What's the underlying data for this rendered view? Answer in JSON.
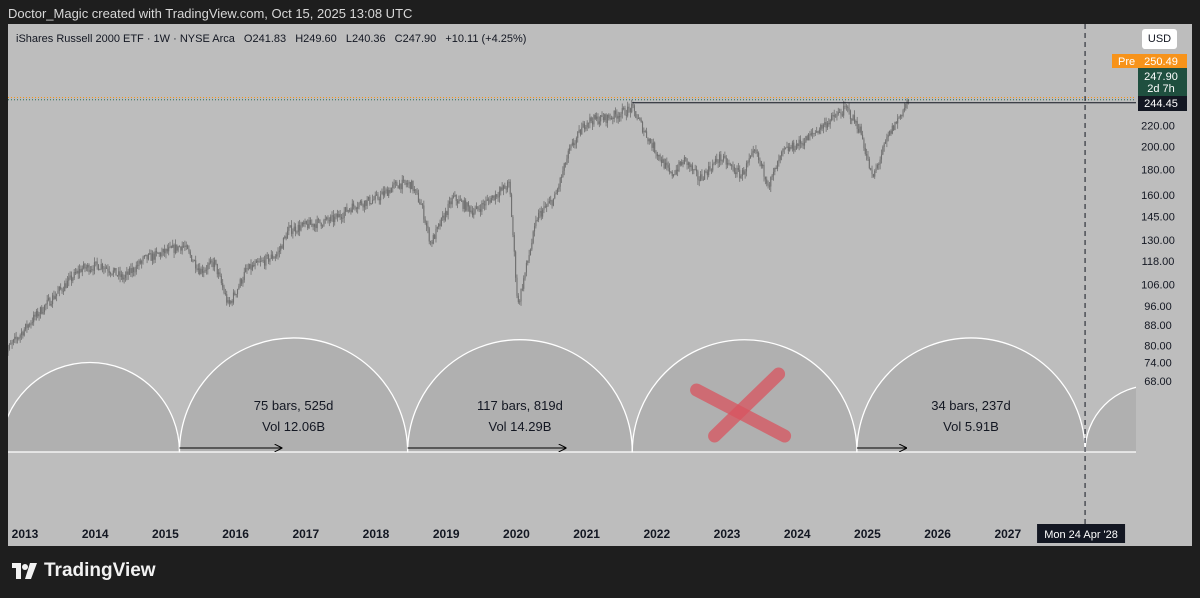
{
  "header": {
    "attribution": "Doctor_Magic created with TradingView.com, Oct 15, 2025 13:08 UTC"
  },
  "legend": {
    "symbol": "iShares Russell 2000 ETF · 1W · NYSE Arca",
    "open": "O241.83",
    "high": "H249.60",
    "low": "L240.36",
    "close": "C247.90",
    "change": "+10.11 (+4.25%)"
  },
  "currency_button": "USD",
  "price_badges": {
    "pre_label": "Pre",
    "pre_value": "250.49",
    "last_value": "247.90",
    "countdown": "2d 7h",
    "level_value": "244.45"
  },
  "crosshair_date": "Mon 24 Apr '28",
  "brand": {
    "name": "TradingView"
  },
  "colors": {
    "background": "#bdbdbd",
    "candles": "#6f6f6f",
    "pre_badge": "#f7931a",
    "last_badge": "#1f4f3f",
    "arc": "#ffffff",
    "cross": "#d9545f"
  },
  "chart_data": {
    "type": "candlestick",
    "timeframe": "1W",
    "y_scale": "log",
    "y_ticks": [
      220.0,
      200.0,
      180.0,
      160.0,
      145.0,
      130.0,
      118.0,
      106.0,
      96.0,
      88.0,
      80.0,
      74.0,
      68.0
    ],
    "x_ticks": [
      "2013",
      "2014",
      "2015",
      "2016",
      "2017",
      "2018",
      "2019",
      "2020",
      "2021",
      "2022",
      "2023",
      "2024",
      "2025",
      "2026",
      "2027"
    ],
    "price_path": [
      [
        2012.9,
        77
      ],
      [
        2013.3,
        90
      ],
      [
        2013.6,
        100
      ],
      [
        2014.0,
        114
      ],
      [
        2014.3,
        116
      ],
      [
        2014.6,
        109
      ],
      [
        2014.9,
        119
      ],
      [
        2015.2,
        123
      ],
      [
        2015.45,
        127
      ],
      [
        2015.7,
        113
      ],
      [
        2015.9,
        117
      ],
      [
        2016.1,
        96
      ],
      [
        2016.35,
        113
      ],
      [
        2016.8,
        122
      ],
      [
        2016.95,
        136
      ],
      [
        2017.2,
        139
      ],
      [
        2017.6,
        143
      ],
      [
        2017.9,
        153
      ],
      [
        2018.2,
        157
      ],
      [
        2018.5,
        168
      ],
      [
        2018.7,
        168
      ],
      [
        2018.85,
        152
      ],
      [
        2018.98,
        128
      ],
      [
        2019.3,
        158
      ],
      [
        2019.6,
        148
      ],
      [
        2019.9,
        160
      ],
      [
        2020.1,
        168
      ],
      [
        2020.22,
        96
      ],
      [
        2020.5,
        145
      ],
      [
        2020.75,
        158
      ],
      [
        2020.95,
        195
      ],
      [
        2021.2,
        225
      ],
      [
        2021.5,
        228
      ],
      [
        2021.85,
        238
      ],
      [
        2022.1,
        205
      ],
      [
        2022.4,
        175
      ],
      [
        2022.6,
        188
      ],
      [
        2022.8,
        172
      ],
      [
        2023.1,
        190
      ],
      [
        2023.4,
        175
      ],
      [
        2023.6,
        195
      ],
      [
        2023.8,
        168
      ],
      [
        2024.0,
        195
      ],
      [
        2024.3,
        205
      ],
      [
        2024.6,
        222
      ],
      [
        2024.9,
        238
      ],
      [
        2025.1,
        215
      ],
      [
        2025.27,
        172
      ],
      [
        2025.5,
        210
      ],
      [
        2025.79,
        247.9
      ]
    ],
    "horizontal_lines": [
      {
        "price": 244.45
      }
    ],
    "cycles": [
      {
        "start": 2012.85,
        "end": 2015.4
      },
      {
        "start": 2015.4,
        "end": 2018.65,
        "bars_label": "75 bars, 525d",
        "vol_label": "Vol 12.06B",
        "arrow": [
          2015.4,
          2016.85
        ]
      },
      {
        "start": 2018.65,
        "end": 2021.85,
        "bars_label": "117 bars, 819d",
        "vol_label": "Vol 14.29B",
        "arrow": [
          2018.65,
          2020.9
        ]
      },
      {
        "start": 2021.85,
        "end": 2025.05,
        "crossed_out": true
      },
      {
        "start": 2025.05,
        "end": 2028.3,
        "bars_label": "34 bars, 237d",
        "vol_label": "Vol 5.91B",
        "arrow": [
          2025.05,
          2025.75
        ]
      },
      {
        "start": 2028.3,
        "end": 2030.2
      }
    ],
    "crosshair_x": 2028.3
  }
}
